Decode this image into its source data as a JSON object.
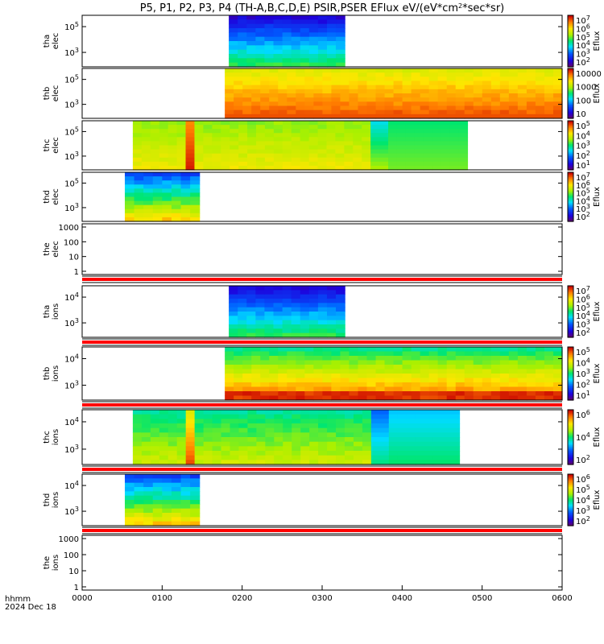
{
  "title": {
    "main": "P5, P1, P2, P3, P4 (TH-A,B,C,D,E) PSIR,PSER EFlux eV/(eV*cm",
    "sup": "2",
    "rest": "*sec*sr)"
  },
  "x_axis": {
    "ticks": [
      "0000",
      "0100",
      "0200",
      "0300",
      "0400",
      "0500",
      "0600"
    ],
    "label_line1": "hhmm",
    "label_line2": "2024 Dec 18"
  },
  "chart_data": {
    "type": "heatmap",
    "x_range_hhmm": [
      "0000",
      "0600"
    ],
    "panels": [
      {
        "ylabel": [
          "thа",
          "elec"
        ],
        "probe": "tha",
        "species": "elec",
        "x_start": "0150",
        "x_end": "0317",
        "scale": "log",
        "yticks": [
          "10^5",
          "10^3"
        ],
        "palette": "blue",
        "colorbar": {
          "ticks": [
            "10^7",
            "10^6",
            "10^5",
            "10^4",
            "10^3",
            "10^2"
          ],
          "label": "Eflux"
        }
      },
      {
        "ylabel": [
          "thb",
          "elec"
        ],
        "probe": "thb",
        "species": "elec",
        "x_start": "0147",
        "x_end": "0600",
        "scale": "log",
        "yticks": [
          "10^5",
          "10^3"
        ],
        "palette": "yellow",
        "colorbar": {
          "ticks": [
            "10000",
            "1000",
            "100",
            "10"
          ],
          "label": "Eflux"
        }
      },
      {
        "ylabel": [
          "thc",
          "elec"
        ],
        "probe": "thc",
        "species": "elec",
        "x_start": "0038",
        "x_end": "0449",
        "scale": "log",
        "yticks": [
          "10^5",
          "10^3"
        ],
        "palette": "yellowgreen",
        "colorbar": {
          "ticks": [
            "10^5",
            "10^4",
            "10^3",
            "10^2",
            "10^1"
          ],
          "label": ""
        }
      },
      {
        "ylabel": [
          "thd",
          "elec"
        ],
        "probe": "thd",
        "species": "elec",
        "x_start": "0032",
        "x_end": "0088",
        "scale": "log",
        "yticks": [
          "10^5",
          "10^3"
        ],
        "palette": "cyan",
        "colorbar": {
          "ticks": [
            "10^7",
            "10^6",
            "10^5",
            "10^4",
            "10^3",
            "10^2"
          ],
          "label": "Eflux"
        }
      },
      {
        "ylabel": [
          "the",
          "elec"
        ],
        "probe": "the",
        "species": "elec",
        "x_start": null,
        "x_end": null,
        "scale": "log",
        "yticks": [
          "1000",
          "100",
          "10",
          "1"
        ],
        "palette": "none",
        "colorbar": null
      },
      {
        "ylabel": [
          "tha",
          "ions"
        ],
        "probe": "tha",
        "species": "ions",
        "x_start": "0150",
        "x_end": "0317",
        "scale": "log",
        "yticks": [
          "10^4",
          "10^3"
        ],
        "palette": "blue",
        "colorbar": {
          "ticks": [
            "10^7",
            "10^6",
            "10^5",
            "10^4",
            "10^3",
            "10^2"
          ],
          "label": "Eflux"
        }
      },
      {
        "ylabel": [
          "thb",
          "ions"
        ],
        "probe": "thb",
        "species": "ions",
        "x_start": "0147",
        "x_end": "0600",
        "scale": "log",
        "yticks": [
          "10^4",
          "10^3"
        ],
        "palette": "green",
        "colorbar": {
          "ticks": [
            "10^5",
            "10^4",
            "10^3",
            "10^2",
            "10^1"
          ],
          "label": "Eflux"
        }
      },
      {
        "ylabel": [
          "thc",
          "ions"
        ],
        "probe": "thc",
        "species": "ions",
        "x_start": "0038",
        "x_end": "0443",
        "scale": "log",
        "yticks": [
          "10^4",
          "10^3"
        ],
        "palette": "cyangreen",
        "colorbar": {
          "ticks": [
            "10^6",
            "10^4",
            "10^2"
          ],
          "label": "Eflux"
        }
      },
      {
        "ylabel": [
          "thd",
          "ions"
        ],
        "probe": "thd",
        "species": "ions",
        "x_start": "0032",
        "x_end": "0088",
        "scale": "log",
        "yticks": [
          "10^4",
          "10^3"
        ],
        "palette": "cyan",
        "colorbar": {
          "ticks": [
            "10^6",
            "10^5",
            "10^4",
            "10^3",
            "10^2"
          ],
          "label": "Eflux"
        }
      },
      {
        "ylabel": [
          "the",
          "ions"
        ],
        "probe": "the",
        "species": "ions",
        "x_start": null,
        "x_end": null,
        "scale": "log",
        "yticks": [
          "1000",
          "100",
          "10",
          "1"
        ],
        "palette": "none",
        "colorbar": null
      }
    ]
  },
  "colors": {
    "frame": "#000000",
    "separator": "#ff0000"
  }
}
